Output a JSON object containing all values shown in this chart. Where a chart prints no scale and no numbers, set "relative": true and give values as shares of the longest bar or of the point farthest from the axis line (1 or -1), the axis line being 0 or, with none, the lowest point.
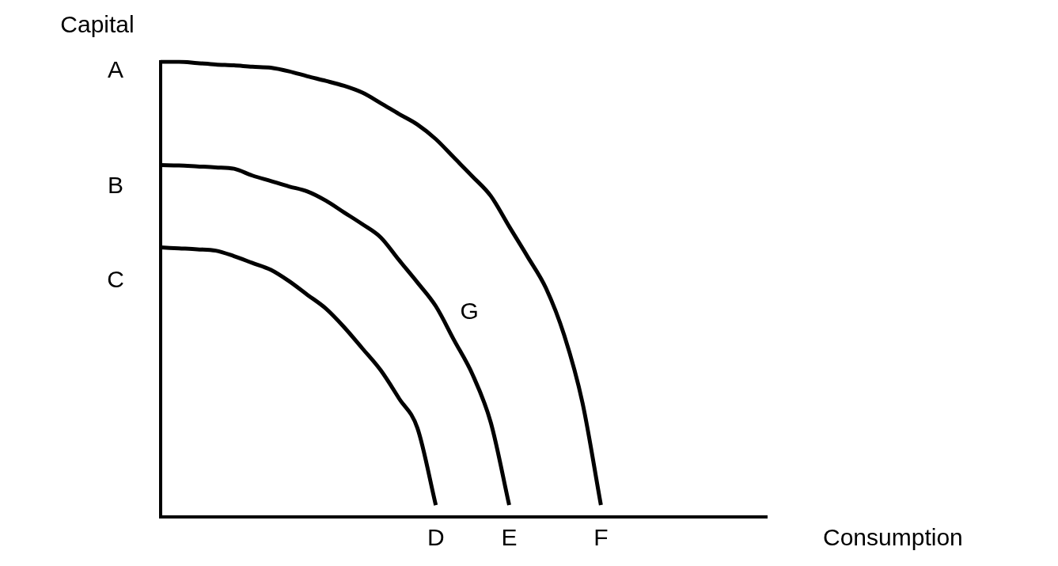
{
  "chart_data": {
    "type": "line",
    "relative": true,
    "xlabel": "Consumption",
    "ylabel": "Capital",
    "legend": false,
    "marker": "none",
    "line_style": "solid",
    "categories": [
      null,
      null,
      null,
      null,
      null,
      null,
      null,
      null,
      null,
      null,
      null,
      null,
      null,
      null,
      null,
      null,
      null,
      null,
      null,
      null,
      null,
      null,
      null,
      null,
      null,
      null,
      null,
      null,
      null,
      null,
      null,
      null,
      null,
      null
    ],
    "series": [
      {
        "color": "#000000",
        "values": [
          1,
          1,
          0.997,
          0.994,
          0.992,
          0.989,
          0.987,
          0.979,
          0.968,
          0.958,
          0.947,
          0.932,
          0.909,
          0.885,
          0.862,
          0.83,
          0.789,
          0.748,
          0.705,
          0.638,
          0.572,
          0.503,
          0.399,
          0.25,
          0.026,
          null,
          null,
          null,
          null,
          null,
          null,
          null,
          null,
          null
        ]
      },
      {
        "color": "#000000",
        "values": [
          0.773,
          0.772,
          0.77,
          0.768,
          0.765,
          0.75,
          0.738,
          0.726,
          0.715,
          0.695,
          0.669,
          0.643,
          0.614,
          0.564,
          0.515,
          0.463,
          0.388,
          0.313,
          0.207,
          0.026,
          null,
          null,
          null,
          null,
          null,
          null,
          null,
          null,
          null,
          null,
          null,
          null,
          null,
          null
        ]
      },
      {
        "color": "#000000",
        "values": [
          0.592,
          0.59,
          0.588,
          0.585,
          0.573,
          0.558,
          0.543,
          0.518,
          0.488,
          0.458,
          0.417,
          0.37,
          0.322,
          0.26,
          0.195,
          0.026,
          null,
          null,
          null,
          null,
          null,
          null,
          null,
          null,
          null,
          null,
          null,
          null,
          null,
          null,
          null,
          null,
          null,
          null
        ]
      }
    ],
    "annotations": [
      "A",
      "B",
      "C",
      "F",
      "E",
      "D",
      "G"
    ]
  }
}
